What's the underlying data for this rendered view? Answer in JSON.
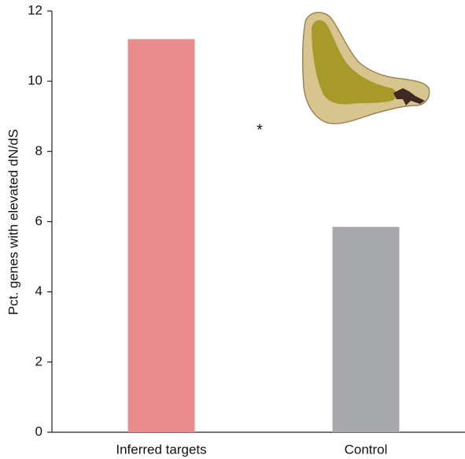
{
  "chart_data": {
    "type": "bar",
    "y_label": "Pct. genes with elevated dN/dS",
    "categories": [
      "Inferred targets",
      "Control"
    ],
    "values": [
      11.2,
      5.85
    ],
    "colors": [
      "#e88c8e",
      "#a7a8ab"
    ],
    "annotation": "*",
    "ylim": [
      0,
      12
    ],
    "yticks": [
      0,
      2,
      4,
      6,
      8,
      10,
      12
    ],
    "grid": false
  }
}
